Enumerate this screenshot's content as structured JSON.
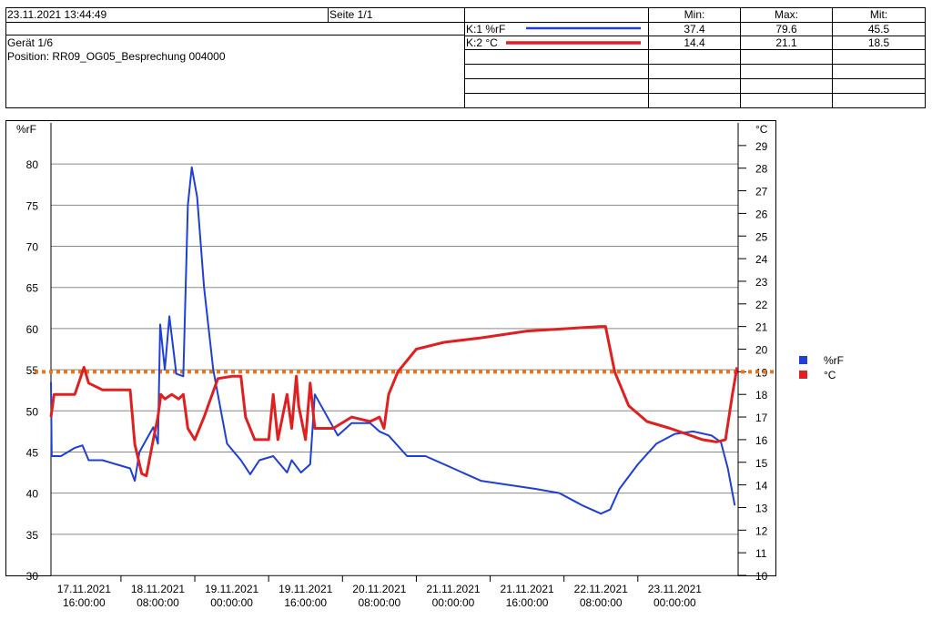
{
  "header": {
    "timestamp": "23.11.2021 13:44:49",
    "page": "Seite 1/1",
    "device": "Gerät 1/6",
    "position": "Position: RR09_OG05_Besprechung 004000",
    "stats": {
      "col_min": "Min:",
      "col_max": "Max:",
      "col_avg": "Mit:",
      "rows": [
        {
          "channel": "K:1 %rF",
          "color": "#1f3fd6",
          "min": "37.4",
          "max": "79.6",
          "avg": "45.5"
        },
        {
          "channel": "K:2 °C",
          "color": "#e02020",
          "min": "14.4",
          "max": "21.1",
          "avg": "18.5"
        }
      ]
    }
  },
  "chart_data": {
    "type": "line",
    "left_axis": {
      "label": "%rF",
      "ticks": [
        "30",
        "35",
        "40",
        "45",
        "50",
        "55",
        "60",
        "65",
        "70",
        "75",
        "80"
      ],
      "range": [
        30,
        85
      ]
    },
    "right_axis": {
      "label": "°C",
      "ticks": [
        "10",
        "11",
        "12",
        "13",
        "14",
        "15",
        "16",
        "17",
        "18",
        "19",
        "20",
        "21",
        "22",
        "23",
        "24",
        "25",
        "26",
        "27",
        "28",
        "29"
      ],
      "range": [
        10,
        30
      ]
    },
    "x_ticks": [
      {
        "date": "17.11.2021",
        "time": "16:00:00"
      },
      {
        "date": "18.11.2021",
        "time": "08:00:00"
      },
      {
        "date": "19.11.2021",
        "time": "00:00:00"
      },
      {
        "date": "19.11.2021",
        "time": "16:00:00"
      },
      {
        "date": "20.11.2021",
        "time": "08:00:00"
      },
      {
        "date": "21.11.2021",
        "time": "00:00:00"
      },
      {
        "date": "21.11.2021",
        "time": "16:00:00"
      },
      {
        "date": "22.11.2021",
        "time": "08:00:00"
      },
      {
        "date": "23.11.2021",
        "time": "00:00:00"
      }
    ],
    "x_range": [
      "17.11.2021 08:50",
      "23.11.2021 13:44"
    ],
    "reference_line": {
      "axis": "right",
      "value": 19,
      "color": "#e8761c"
    },
    "legend": {
      "position": "right",
      "entries": [
        {
          "label": "%rF",
          "color": "#1f3fd6"
        },
        {
          "label": "°C",
          "color": "#e02020"
        }
      ]
    },
    "series": [
      {
        "name": "%rF",
        "axis": "left",
        "color": "#1f3fd6",
        "points": [
          [
            "17.11.2021 08:50",
            53.5
          ],
          [
            "17.11.2021 09:00",
            44.5
          ],
          [
            "17.11.2021 11:00",
            44.5
          ],
          [
            "17.11.2021 14:00",
            45.5
          ],
          [
            "17.11.2021 15:40",
            45.8
          ],
          [
            "17.11.2021 17:00",
            44
          ],
          [
            "17.11.2021 20:00",
            44
          ],
          [
            "17.11.2021 23:00",
            43.5
          ],
          [
            "18.11.2021 02:00",
            43
          ],
          [
            "18.11.2021 03:00",
            41.5
          ],
          [
            "18.11.2021 04:00",
            45
          ],
          [
            "18.11.2021 07:00",
            48
          ],
          [
            "18.11.2021 08:00",
            46
          ],
          [
            "18.11.2021 08:30",
            60.5
          ],
          [
            "18.11.2021 09:30",
            55
          ],
          [
            "18.11.2021 10:30",
            61.5
          ],
          [
            "18.11.2021 12:00",
            54.5
          ],
          [
            "18.11.2021 13:30",
            54.2
          ],
          [
            "18.11.2021 14:30",
            75
          ],
          [
            "18.11.2021 15:20",
            79.6
          ],
          [
            "18.11.2021 16:30",
            76
          ],
          [
            "18.11.2021 18:00",
            65
          ],
          [
            "18.11.2021 20:00",
            55
          ],
          [
            "18.11.2021 23:00",
            46
          ],
          [
            "19.11.2021 02:00",
            44
          ],
          [
            "19.11.2021 04:00",
            42.3
          ],
          [
            "19.11.2021 06:00",
            44
          ],
          [
            "19.11.2021 09:00",
            44.5
          ],
          [
            "19.11.2021 12:00",
            42.5
          ],
          [
            "19.11.2021 13:00",
            44
          ],
          [
            "19.11.2021 15:00",
            42.5
          ],
          [
            "19.11.2021 17:00",
            43.5
          ],
          [
            "19.11.2021 18:00",
            52
          ],
          [
            "19.11.2021 20:00",
            50
          ],
          [
            "19.11.2021 23:00",
            47
          ],
          [
            "20.11.2021 02:00",
            48.5
          ],
          [
            "20.11.2021 06:00",
            48.5
          ],
          [
            "20.11.2021 08:00",
            47.5
          ],
          [
            "20.11.2021 10:00",
            47
          ],
          [
            "20.11.2021 14:00",
            44.5
          ],
          [
            "20.11.2021 18:00",
            44.5
          ],
          [
            "21.11.2021 00:00",
            43
          ],
          [
            "21.11.2021 06:00",
            41.5
          ],
          [
            "21.11.2021 12:00",
            41
          ],
          [
            "21.11.2021 18:00",
            40.5
          ],
          [
            "21.11.2021 23:00",
            40
          ],
          [
            "22.11.2021 04:00",
            38.5
          ],
          [
            "22.11.2021 08:00",
            37.5
          ],
          [
            "22.11.2021 10:00",
            38
          ],
          [
            "22.11.2021 12:00",
            40.5
          ],
          [
            "22.11.2021 16:00",
            43.5
          ],
          [
            "22.11.2021 20:00",
            46
          ],
          [
            "23.11.2021 00:00",
            47.2
          ],
          [
            "23.11.2021 04:00",
            47.5
          ],
          [
            "23.11.2021 08:00",
            47
          ],
          [
            "23.11.2021 10:00",
            46.2
          ],
          [
            "23.11.2021 11:30",
            43
          ],
          [
            "23.11.2021 13:00",
            38.5
          ]
        ]
      },
      {
        "name": "°C",
        "axis": "right",
        "color": "#e02020",
        "points": [
          [
            "17.11.2021 08:50",
            17
          ],
          [
            "17.11.2021 09:30",
            18
          ],
          [
            "17.11.2021 14:00",
            18
          ],
          [
            "17.11.2021 16:00",
            19.2
          ],
          [
            "17.11.2021 17:00",
            18.5
          ],
          [
            "17.11.2021 20:00",
            18.2
          ],
          [
            "18.11.2021 02:00",
            18.2
          ],
          [
            "18.11.2021 03:00",
            15.8
          ],
          [
            "18.11.2021 04:30",
            14.5
          ],
          [
            "18.11.2021 05:30",
            14.4
          ],
          [
            "18.11.2021 07:00",
            16
          ],
          [
            "18.11.2021 08:00",
            17
          ],
          [
            "18.11.2021 08:40",
            18
          ],
          [
            "18.11.2021 09:30",
            17.8
          ],
          [
            "18.11.2021 11:00",
            18
          ],
          [
            "18.11.2021 12:30",
            17.8
          ],
          [
            "18.11.2021 13:30",
            18
          ],
          [
            "18.11.2021 14:30",
            16.5
          ],
          [
            "18.11.2021 16:00",
            16
          ],
          [
            "18.11.2021 18:00",
            17
          ],
          [
            "18.11.2021 21:00",
            18.7
          ],
          [
            "19.11.2021 00:00",
            18.8
          ],
          [
            "19.11.2021 02:00",
            18.8
          ],
          [
            "19.11.2021 03:00",
            17
          ],
          [
            "19.11.2021 05:00",
            16
          ],
          [
            "19.11.2021 08:00",
            16
          ],
          [
            "19.11.2021 09:00",
            18
          ],
          [
            "19.11.2021 10:00",
            16
          ],
          [
            "19.11.2021 12:00",
            18
          ],
          [
            "19.11.2021 13:00",
            16.5
          ],
          [
            "19.11.2021 14:00",
            18.8
          ],
          [
            "19.11.2021 14:30",
            17.5
          ],
          [
            "19.11.2021 16:00",
            16
          ],
          [
            "19.11.2021 17:00",
            18.5
          ],
          [
            "19.11.2021 18:00",
            16.5
          ],
          [
            "19.11.2021 22:00",
            16.5
          ],
          [
            "20.11.2021 02:00",
            17
          ],
          [
            "20.11.2021 06:00",
            16.8
          ],
          [
            "20.11.2021 08:00",
            17
          ],
          [
            "20.11.2021 09:00",
            16.5
          ],
          [
            "20.11.2021 10:00",
            18
          ],
          [
            "20.11.2021 12:00",
            19
          ],
          [
            "20.11.2021 16:00",
            20
          ],
          [
            "20.11.2021 22:00",
            20.3
          ],
          [
            "21.11.2021 06:00",
            20.5
          ],
          [
            "21.11.2021 16:00",
            20.8
          ],
          [
            "22.11.2021 08:00",
            21
          ],
          [
            "22.11.2021 09:00",
            21
          ],
          [
            "22.11.2021 11:00",
            19
          ],
          [
            "22.11.2021 14:00",
            17.5
          ],
          [
            "22.11.2021 18:00",
            16.8
          ],
          [
            "22.11.2021 23:00",
            16.5
          ],
          [
            "23.11.2021 06:00",
            16
          ],
          [
            "23.11.2021 09:00",
            15.9
          ],
          [
            "23.11.2021 11:00",
            16
          ],
          [
            "23.11.2021 12:30",
            18
          ],
          [
            "23.11.2021 13:30",
            19.2
          ]
        ]
      }
    ]
  }
}
